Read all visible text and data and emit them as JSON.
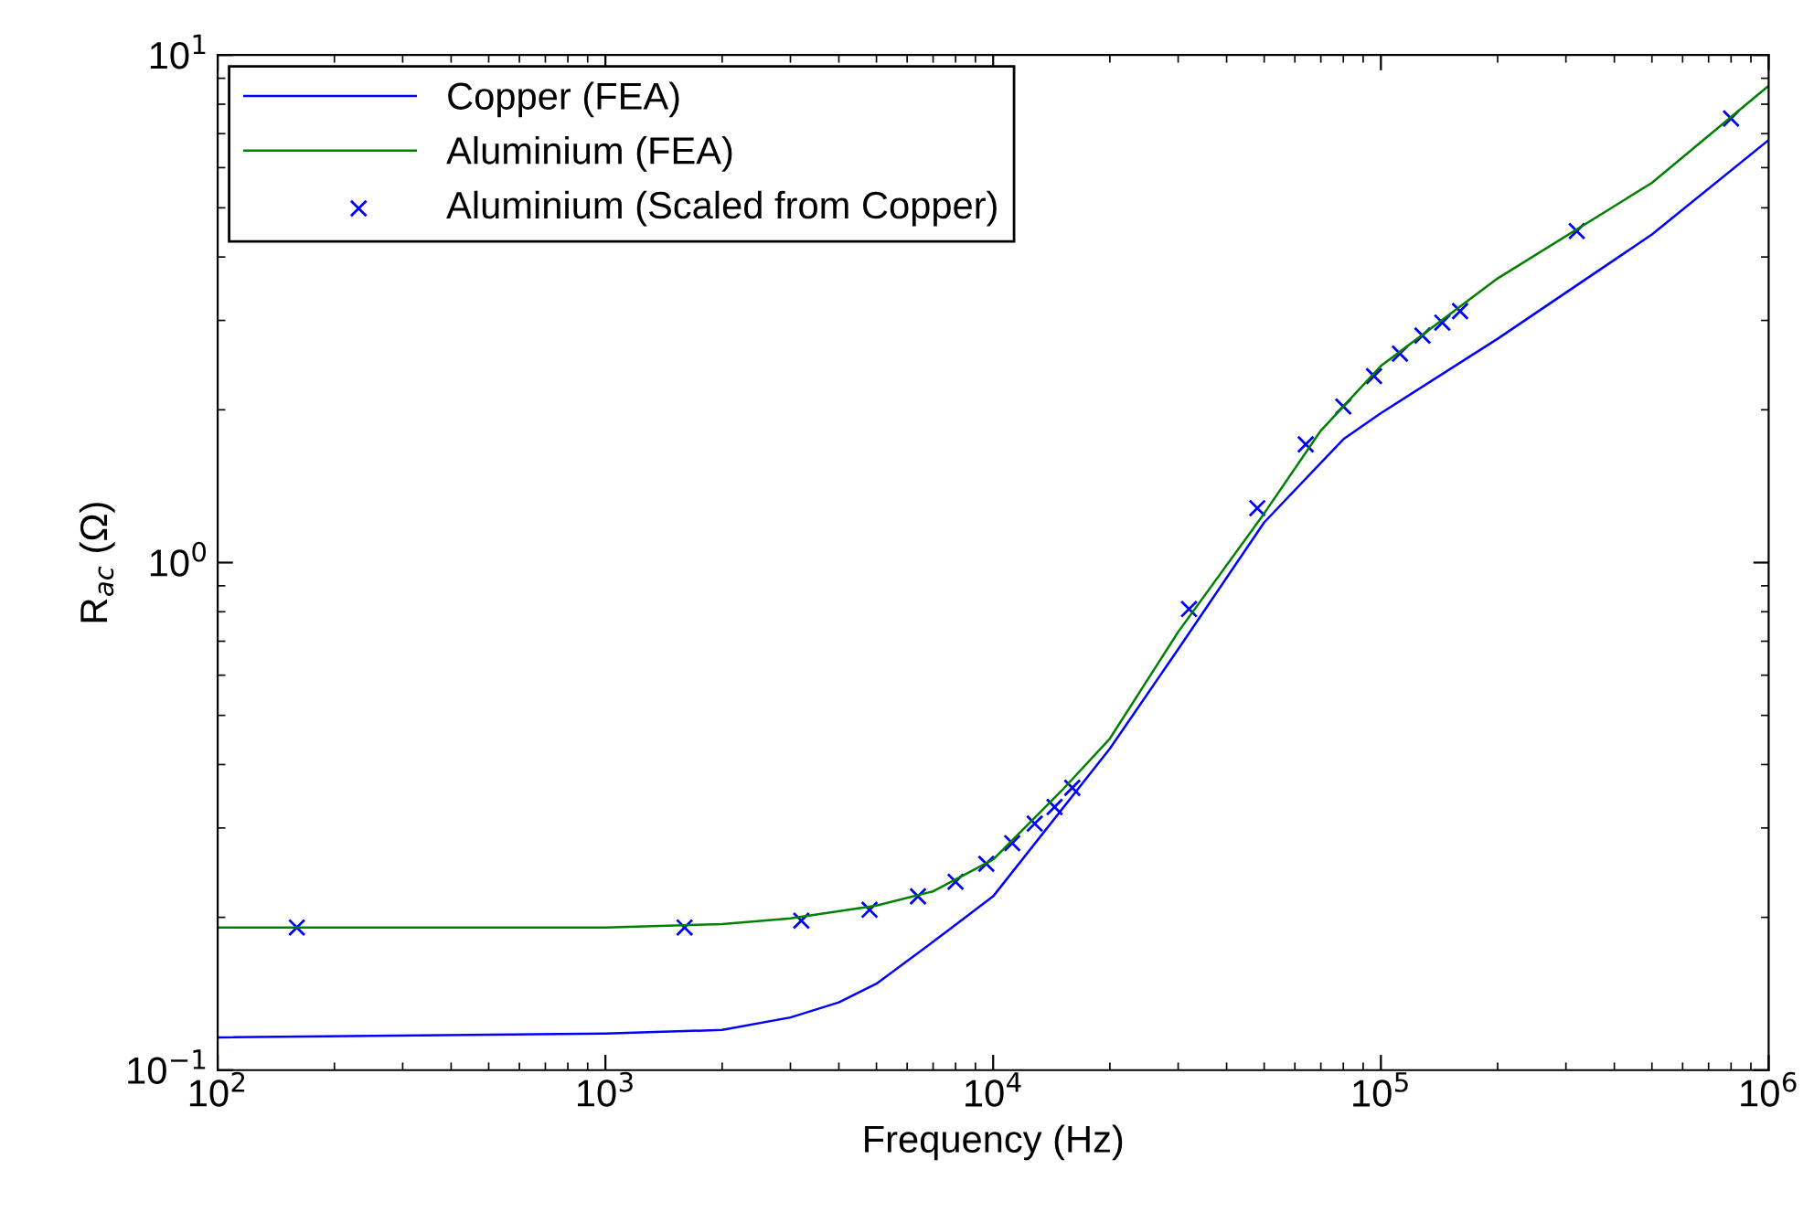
{
  "chart_data": {
    "type": "line",
    "xlabel": "Frequency (Hz)",
    "ylabel": "R$_{ac}$ (Ω)",
    "log": "xy",
    "xlim": [
      100,
      1000000
    ],
    "ylim": [
      0.1,
      10
    ],
    "xticks": [
      {
        "value": 100,
        "label": "10$^{2}$"
      },
      {
        "value": 1000,
        "label": "10$^{3}$"
      },
      {
        "value": 10000,
        "label": "10$^{4}$"
      },
      {
        "value": 100000,
        "label": "10$^{5}$"
      },
      {
        "value": 1000000,
        "label": "10$^{6}$"
      }
    ],
    "yticks": [
      {
        "value": 0.1,
        "label": "10$^{−1}$"
      },
      {
        "value": 1,
        "label": "10$^{0}$"
      },
      {
        "value": 10,
        "label": "10$^{1}$"
      }
    ],
    "grid": false,
    "legend": "top left",
    "series": [
      {
        "name": "Copper (FEA)",
        "color": "#0000ff",
        "marker": "none",
        "x": [
          100,
          1000,
          2000,
          3000,
          4000,
          5000,
          7000,
          10000,
          20000,
          30000,
          50000,
          80000,
          100000,
          200000,
          500000,
          1000000
        ],
        "values": [
          0.116,
          0.118,
          0.12,
          0.127,
          0.136,
          0.148,
          0.179,
          0.22,
          0.43,
          0.675,
          1.2,
          1.75,
          1.97,
          2.76,
          4.43,
          6.8
        ]
      },
      {
        "name": "Aluminium (FEA)",
        "color": "#008000",
        "marker": "none",
        "x": [
          100,
          1000,
          2000,
          3000,
          5000,
          7000,
          10000,
          15000,
          20000,
          30000,
          50000,
          70000,
          100000,
          200000,
          500000,
          1000000
        ],
        "values": [
          0.191,
          0.191,
          0.194,
          0.199,
          0.211,
          0.225,
          0.26,
          0.355,
          0.45,
          0.73,
          1.25,
          1.82,
          2.44,
          3.63,
          5.6,
          8.7
        ]
      },
      {
        "name": "Aluminium (Scaled from Copper)",
        "color": "#0000ff",
        "type": "scatter",
        "marker": "cross",
        "x": [
          160,
          1600,
          3200,
          4800,
          6400,
          8000,
          9600,
          11200,
          12800,
          14400,
          16000,
          32000,
          48000,
          64000,
          80000,
          96000,
          112000,
          128000,
          144000,
          160000,
          320000,
          800000
        ],
        "values": [
          0.191,
          0.191,
          0.197,
          0.207,
          0.22,
          0.235,
          0.255,
          0.28,
          0.306,
          0.33,
          0.36,
          0.81,
          1.28,
          1.71,
          2.03,
          2.33,
          2.58,
          2.8,
          2.97,
          3.13,
          4.5,
          7.5
        ]
      }
    ]
  }
}
